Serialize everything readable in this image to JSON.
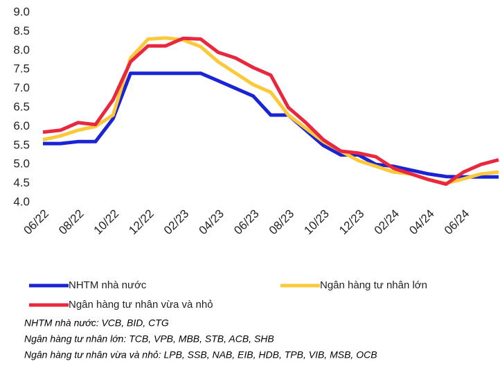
{
  "chart_data": {
    "type": "line",
    "categories": [
      "06/22",
      null,
      "08/22",
      null,
      "10/22",
      null,
      "12/22",
      null,
      "02/23",
      null,
      "04/23",
      null,
      "06/23",
      null,
      "08/23",
      null,
      "10/23",
      null,
      "12/23",
      null,
      "02/24",
      null,
      "04/24",
      null,
      "06/24",
      null,
      null
    ],
    "series": [
      {
        "name": "NHTM nhà nước",
        "color": "#1a23d6",
        "values": [
          5.55,
          5.55,
          5.6,
          5.6,
          6.2,
          7.4,
          7.4,
          7.4,
          7.4,
          7.4,
          7.2,
          7.0,
          6.8,
          6.3,
          6.3,
          5.9,
          5.5,
          5.25,
          5.25,
          5.0,
          4.95,
          4.85,
          4.75,
          4.68,
          4.67,
          4.67,
          4.67
        ]
      },
      {
        "name": "Ngân hàng tư nhân lớn",
        "color": "#fcc93a",
        "values": [
          5.65,
          5.75,
          5.9,
          6.0,
          6.3,
          7.8,
          8.3,
          8.33,
          8.28,
          8.1,
          7.7,
          7.4,
          7.1,
          6.9,
          6.3,
          5.95,
          5.6,
          5.35,
          5.1,
          4.95,
          4.8,
          4.75,
          4.6,
          4.5,
          4.62,
          4.75,
          4.8
        ]
      },
      {
        "name": "Ngân hàng tư nhân vừa và nhỏ",
        "color": "#e8283f",
        "values": [
          5.85,
          5.9,
          6.1,
          6.05,
          6.7,
          7.7,
          8.12,
          8.12,
          8.32,
          8.3,
          7.95,
          7.8,
          7.55,
          7.35,
          6.5,
          6.1,
          5.65,
          5.35,
          5.3,
          5.2,
          4.9,
          4.75,
          4.6,
          4.48,
          4.8,
          5.0,
          5.12
        ]
      }
    ],
    "ylim": [
      4,
      9
    ],
    "yticks": [
      {
        "value": 4,
        "label": "4.0"
      },
      {
        "value": 4.5,
        "label": "4.5"
      },
      {
        "value": 5,
        "label": "5.0"
      },
      {
        "value": 5.5,
        "label": "5.5"
      },
      {
        "value": 6,
        "label": "6.0"
      },
      {
        "value": 6.5,
        "label": "6.5"
      },
      {
        "value": 7,
        "label": "7.0"
      },
      {
        "value": 7.5,
        "label": "7.5"
      },
      {
        "value": 8,
        "label": "8.0"
      },
      {
        "value": 8.5,
        "label": "8.5"
      },
      {
        "value": 9,
        "label": "9.0"
      }
    ],
    "grid": false,
    "annotations": [
      "NHTM nhà nước: VCB, BID, CTG",
      "Ngân hàng tư nhân lớn: TCB, VPB, MBB, STB, ACB, SHB",
      "Ngân hàng tư nhân vừa và nhỏ: LPB, SSB, NAB, EIB, HDB, TPB, VIB, MSB, OCB"
    ]
  }
}
